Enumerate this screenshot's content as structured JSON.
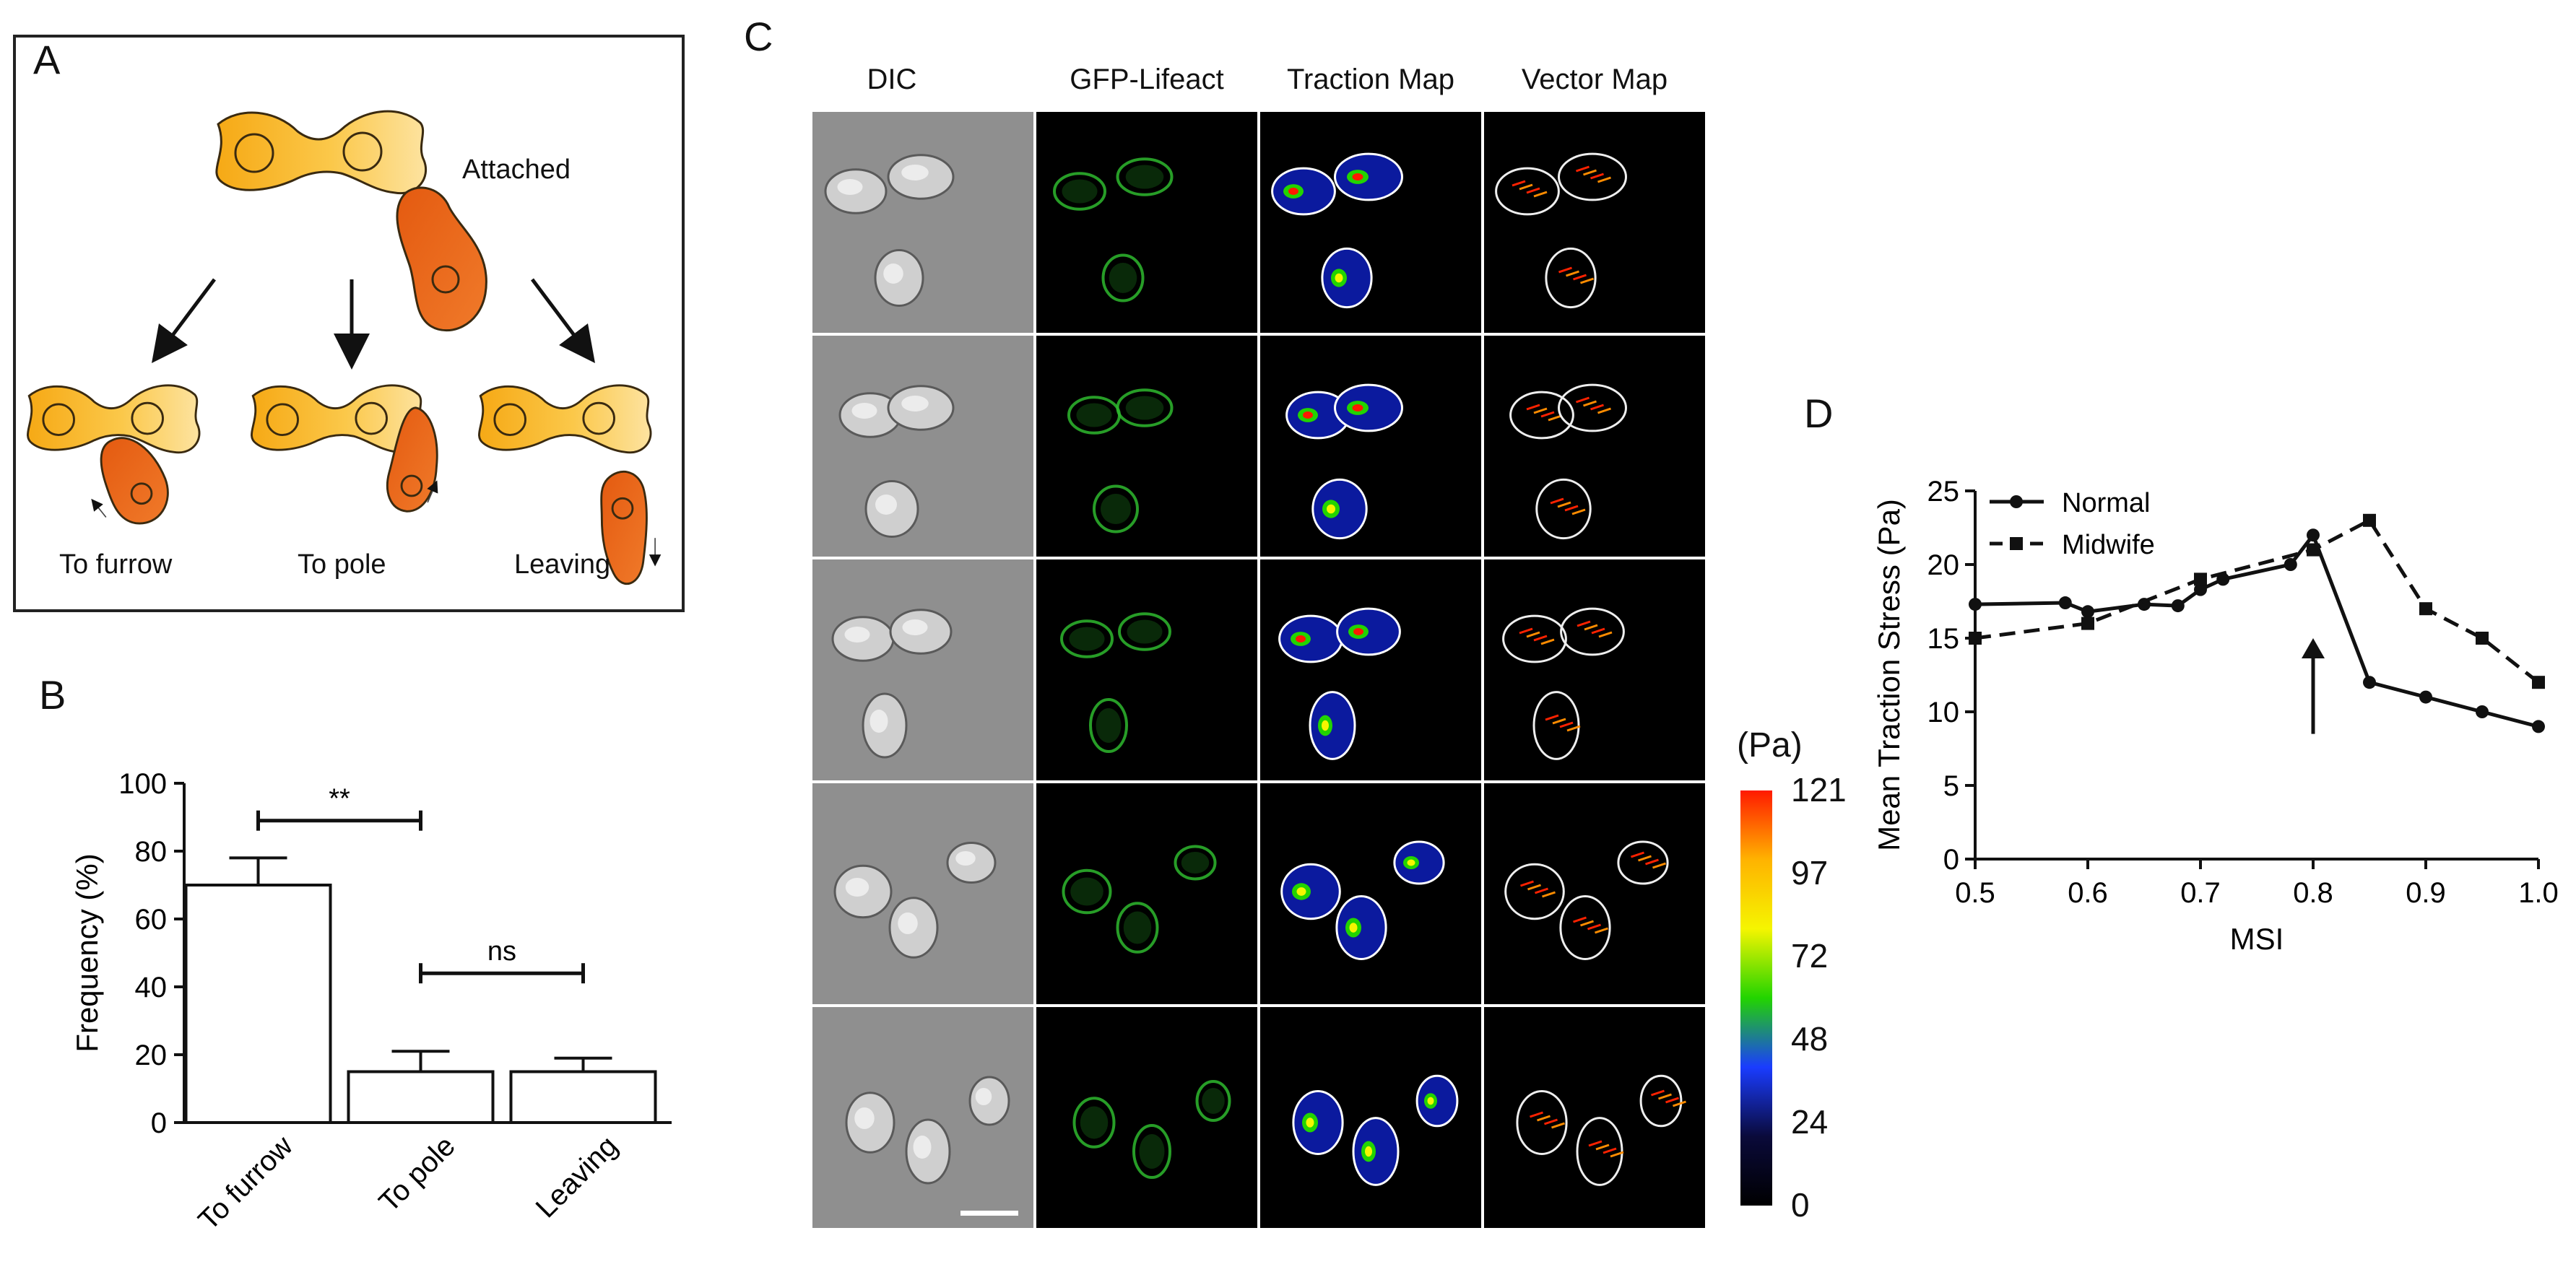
{
  "panels": {
    "A": "A",
    "B": "B",
    "C": "C",
    "D": "D"
  },
  "schematic": {
    "attached_label": "Attached",
    "outcomes": [
      "To furrow",
      "To pole",
      "Leaving"
    ],
    "colors": {
      "daughter_cell": "#f6b21e",
      "daughter_cell_light": "#fde3a0",
      "invader_cell": "#e9661b",
      "outline": "#3a2a10"
    }
  },
  "bar_chart": {
    "chart_data": {
      "type": "bar",
      "categories": [
        "To furrow",
        "To pole",
        "Leaving"
      ],
      "values": [
        70,
        15,
        15
      ],
      "errors": [
        8,
        6,
        4
      ],
      "ylabel": "Frequency (%)",
      "ylim": [
        0,
        100
      ],
      "yticks": [
        "0",
        "20",
        "40",
        "60",
        "80",
        "100"
      ],
      "annotations": [
        {
          "text": "**",
          "from": "To furrow",
          "to": "To pole"
        },
        {
          "text": "ns",
          "from": "To pole",
          "to": "Leaving"
        }
      ]
    }
  },
  "micrographs": {
    "columns": [
      "DIC",
      "GFP-Lifeact",
      "Traction Map",
      "Vector Map"
    ],
    "rows": 5,
    "colorbar": {
      "unit": "(Pa)",
      "ticks": [
        "121",
        "97",
        "72",
        "48",
        "24",
        "0"
      ],
      "colors": [
        "#ff1a00",
        "#ffb300",
        "#f5f500",
        "#22d400",
        "#1a3cff",
        "#0a0a3a",
        "#000000"
      ]
    }
  },
  "line_chart": {
    "chart_data": {
      "type": "line",
      "xlabel": "MSI",
      "ylabel": "Mean Traction Stress (Pa)",
      "xlim": [
        0.5,
        1.0
      ],
      "ylim": [
        0,
        25
      ],
      "xticks": [
        "0.5",
        "0.6",
        "0.7",
        "0.8",
        "0.9",
        "1.0"
      ],
      "yticks": [
        "0",
        "5",
        "10",
        "15",
        "20",
        "25"
      ],
      "legend_position": "top-left",
      "series": [
        {
          "name": "Normal",
          "marker": "circle",
          "dash": "solid",
          "points": [
            [
              0.5,
              17.3
            ],
            [
              0.58,
              17.4
            ],
            [
              0.6,
              16.8
            ],
            [
              0.65,
              17.3
            ],
            [
              0.68,
              17.2
            ],
            [
              0.7,
              18.3
            ],
            [
              0.72,
              19.0
            ],
            [
              0.78,
              20.0
            ],
            [
              0.8,
              22.0
            ],
            [
              0.85,
              12.0
            ],
            [
              0.9,
              11.0
            ],
            [
              0.95,
              10.0
            ],
            [
              1.0,
              9.0
            ]
          ]
        },
        {
          "name": "Midwife",
          "marker": "square",
          "dash": "dashed",
          "points": [
            [
              0.5,
              15.0
            ],
            [
              0.6,
              16.0
            ],
            [
              0.7,
              19.0
            ],
            [
              0.8,
              21.0
            ],
            [
              0.85,
              23.0
            ],
            [
              0.9,
              17.0
            ],
            [
              0.95,
              15.0
            ],
            [
              1.0,
              12.0
            ]
          ]
        }
      ],
      "arrow_annotation": {
        "x": 0.8,
        "y_from": 8.5,
        "y_to": 15
      }
    }
  }
}
